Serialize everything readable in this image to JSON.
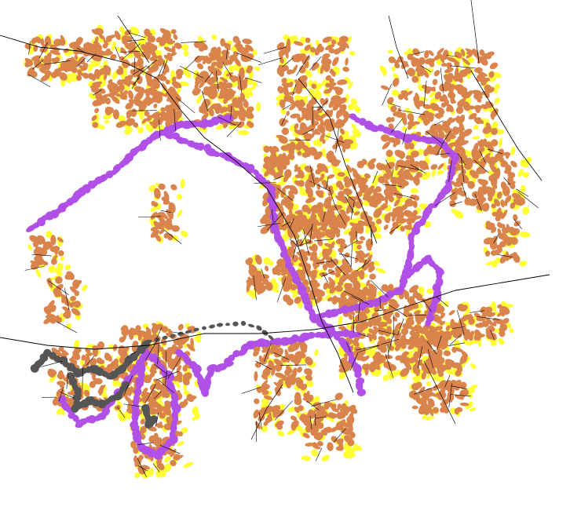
{
  "map": {
    "background": "#ffffff",
    "layers": [
      {
        "name": "road-network",
        "color": "#000000"
      },
      {
        "name": "orange-halo",
        "color": "#d9844c"
      },
      {
        "name": "yellow-halo",
        "color": "#ffff33"
      },
      {
        "name": "purple-halo",
        "color": "#b150e6"
      },
      {
        "name": "gray-halo",
        "color": "#555555"
      }
    ]
  }
}
